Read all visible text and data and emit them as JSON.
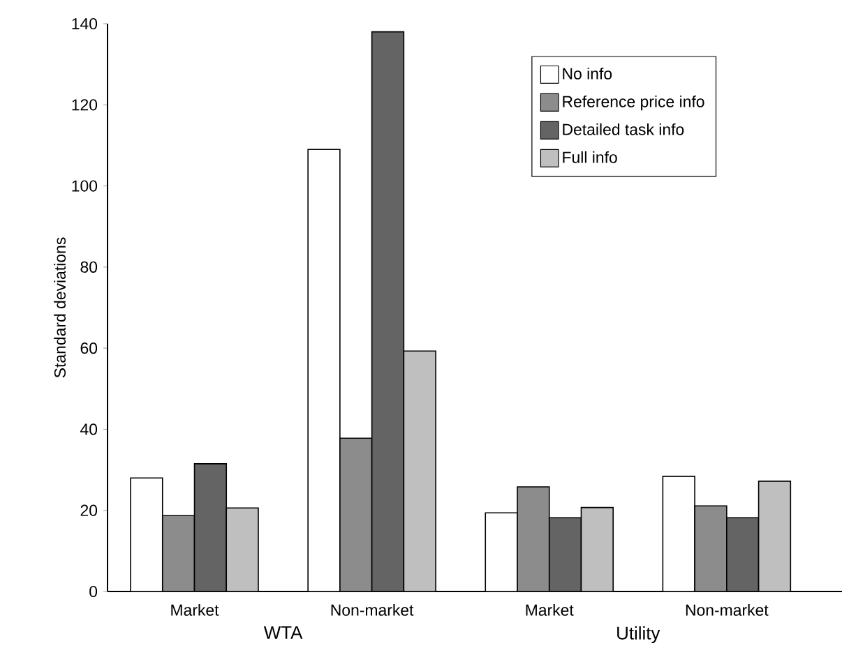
{
  "chart_data": {
    "type": "bar",
    "ylabel": "Standard deviations",
    "categories": [
      "Market",
      "Non-market",
      "Market",
      "Non-market"
    ],
    "series": [
      {
        "name": "No info",
        "color": "#ffffff",
        "values": [
          28,
          109,
          19.4,
          28.4
        ]
      },
      {
        "name": "Reference price info",
        "color": "#8c8c8c",
        "values": [
          18.7,
          37.8,
          25.8,
          21.1
        ]
      },
      {
        "name": "Detailed task info",
        "color": "#646464",
        "values": [
          31.5,
          138,
          18.2,
          18.2
        ]
      },
      {
        "name": "Full info",
        "color": "#bfbfbf",
        "values": [
          20.6,
          59.3,
          20.7,
          27.2
        ]
      }
    ],
    "annotations": [
      "WTA",
      "Utility"
    ],
    "ylim": [
      0,
      140
    ],
    "yticks": [
      0,
      20,
      40,
      60,
      80,
      100,
      120,
      140
    ],
    "legend": "top right"
  }
}
